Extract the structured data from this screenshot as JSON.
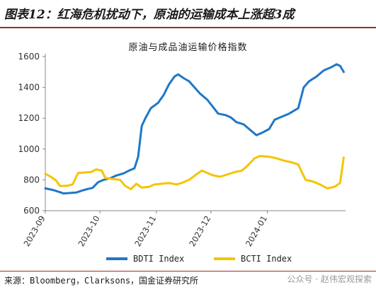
{
  "figure_title": "图表12：红海危机扰动下，原油的运输成本上涨超3成",
  "source": "来源：Bloomberg，Clarksons，国金证券研究所",
  "watermark": "公众号 · 赵伟宏观探索",
  "colors": {
    "bdti": "#1f77c8",
    "bcti": "#f5c400",
    "rule": "#9b2b2b"
  },
  "chart_data": {
    "type": "line",
    "title": "原油与成品油运输价格指数",
    "xlabel": "",
    "ylabel": "",
    "ylim": [
      600,
      1600
    ],
    "yticks": [
      600,
      800,
      1000,
      1200,
      1400,
      1600
    ],
    "xlim": [
      "2023-09-01",
      "2024-02-13"
    ],
    "xticks": [
      "2023-09",
      "2023-10",
      "2023-11",
      "2023-12",
      "2024-01"
    ],
    "grid": false,
    "legend": "bottom",
    "series": [
      {
        "name": "BDTI Index",
        "points": [
          [
            "2023-09-01",
            745
          ],
          [
            "2023-09-05",
            735
          ],
          [
            "2023-09-09",
            720
          ],
          [
            "2023-09-11",
            712
          ],
          [
            "2023-09-15",
            715
          ],
          [
            "2023-09-18",
            718
          ],
          [
            "2023-09-21",
            730
          ],
          [
            "2023-09-24",
            740
          ],
          [
            "2023-09-27",
            748
          ],
          [
            "2023-09-30",
            785
          ],
          [
            "2023-10-03",
            800
          ],
          [
            "2023-10-07",
            812
          ],
          [
            "2023-10-10",
            828
          ],
          [
            "2023-10-14",
            842
          ],
          [
            "2023-10-17",
            860
          ],
          [
            "2023-10-20",
            875
          ],
          [
            "2023-10-22",
            950
          ],
          [
            "2023-10-24",
            1150
          ],
          [
            "2023-10-26",
            1200
          ],
          [
            "2023-10-29",
            1265
          ],
          [
            "2023-11-02",
            1300
          ],
          [
            "2023-11-05",
            1350
          ],
          [
            "2023-11-08",
            1420
          ],
          [
            "2023-11-11",
            1470
          ],
          [
            "2023-11-13",
            1485
          ],
          [
            "2023-11-16",
            1460
          ],
          [
            "2023-11-19",
            1440
          ],
          [
            "2023-11-22",
            1400
          ],
          [
            "2023-11-25",
            1360
          ],
          [
            "2023-11-29",
            1320
          ],
          [
            "2023-12-02",
            1275
          ],
          [
            "2023-12-05",
            1230
          ],
          [
            "2023-12-09",
            1220
          ],
          [
            "2023-12-12",
            1205
          ],
          [
            "2023-12-15",
            1175
          ],
          [
            "2023-12-19",
            1160
          ],
          [
            "2023-12-22",
            1130
          ],
          [
            "2023-12-26",
            1090
          ],
          [
            "2023-12-29",
            1105
          ],
          [
            "2024-01-02",
            1130
          ],
          [
            "2024-01-05",
            1190
          ],
          [
            "2024-01-09",
            1210
          ],
          [
            "2024-01-13",
            1230
          ],
          [
            "2024-01-18",
            1265
          ],
          [
            "2024-01-21",
            1400
          ],
          [
            "2024-01-24",
            1440
          ],
          [
            "2024-01-28",
            1470
          ],
          [
            "2024-02-01",
            1510
          ],
          [
            "2024-02-05",
            1530
          ],
          [
            "2024-02-08",
            1550
          ],
          [
            "2024-02-10",
            1540
          ],
          [
            "2024-02-12",
            1500
          ]
        ]
      },
      {
        "name": "BCTI Index",
        "points": [
          [
            "2023-09-01",
            840
          ],
          [
            "2023-09-04",
            820
          ],
          [
            "2023-09-07",
            795
          ],
          [
            "2023-09-09",
            760
          ],
          [
            "2023-09-13",
            762
          ],
          [
            "2023-09-16",
            770
          ],
          [
            "2023-09-19",
            845
          ],
          [
            "2023-09-23",
            848
          ],
          [
            "2023-09-26",
            850
          ],
          [
            "2023-09-29",
            868
          ],
          [
            "2023-10-02",
            860
          ],
          [
            "2023-10-04",
            812
          ],
          [
            "2023-10-08",
            806
          ],
          [
            "2023-10-12",
            800
          ],
          [
            "2023-10-15",
            760
          ],
          [
            "2023-10-18",
            740
          ],
          [
            "2023-10-21",
            775
          ],
          [
            "2023-10-24",
            750
          ],
          [
            "2023-10-28",
            755
          ],
          [
            "2023-10-31",
            770
          ],
          [
            "2023-11-04",
            775
          ],
          [
            "2023-11-08",
            780
          ],
          [
            "2023-11-12",
            770
          ],
          [
            "2023-11-15",
            780
          ],
          [
            "2023-11-19",
            800
          ],
          [
            "2023-11-23",
            835
          ],
          [
            "2023-11-26",
            860
          ],
          [
            "2023-11-28",
            850
          ],
          [
            "2023-12-02",
            830
          ],
          [
            "2023-12-06",
            820
          ],
          [
            "2023-12-10",
            835
          ],
          [
            "2023-12-14",
            850
          ],
          [
            "2023-12-18",
            860
          ],
          [
            "2023-12-21",
            890
          ],
          [
            "2023-12-25",
            940
          ],
          [
            "2023-12-28",
            955
          ],
          [
            "2024-01-02",
            950
          ],
          [
            "2024-01-06",
            940
          ],
          [
            "2024-01-10",
            925
          ],
          [
            "2024-01-14",
            915
          ],
          [
            "2024-01-18",
            900
          ],
          [
            "2024-01-22",
            800
          ],
          [
            "2024-01-26",
            790
          ],
          [
            "2024-01-30",
            770
          ],
          [
            "2024-02-03",
            745
          ],
          [
            "2024-02-07",
            755
          ],
          [
            "2024-02-10",
            780
          ],
          [
            "2024-02-12",
            945
          ]
        ]
      }
    ]
  }
}
